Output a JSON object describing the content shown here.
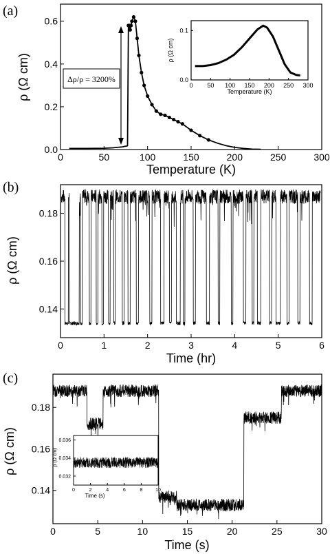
{
  "chart_data": [
    {
      "panel_label": "(a)",
      "type": "line",
      "xlabel": "Temperature (K)",
      "ylabel": "ρ (Ω cm)",
      "xlim": [
        0,
        300
      ],
      "ylim": [
        0,
        0.68
      ],
      "xticks": [
        "0",
        "50",
        "100",
        "150",
        "200",
        "250",
        "300"
      ],
      "yticks": [
        "0.0",
        "0.2",
        "0.4",
        "0.6"
      ],
      "annotation": "Δρ/ρ = 3200%",
      "series": [
        {
          "x": [
            10,
            30,
            50,
            60,
            65,
            70,
            72,
            74,
            76,
            77,
            78,
            79,
            80,
            81,
            82,
            84,
            86,
            88,
            90,
            93,
            96,
            100,
            105,
            110,
            115,
            120,
            125,
            130,
            135,
            140,
            150,
            160,
            170,
            180,
            190,
            200,
            210,
            220,
            230
          ],
          "y": [
            0.005,
            0.005,
            0.006,
            0.008,
            0.01,
            0.012,
            0.013,
            0.015,
            0.016,
            0.018,
            0.58,
            0.58,
            0.56,
            0.58,
            0.6,
            0.62,
            0.6,
            0.52,
            0.44,
            0.36,
            0.3,
            0.25,
            0.21,
            0.18,
            0.165,
            0.16,
            0.15,
            0.14,
            0.13,
            0.12,
            0.09,
            0.065,
            0.045,
            0.03,
            0.018,
            0.01,
            0.005,
            0.002,
            0.001
          ]
        }
      ],
      "inset": {
        "type": "line",
        "xlabel": "Temperature (K)",
        "ylabel": "ρ (Ω cm)",
        "xlim": [
          0,
          300
        ],
        "ylim": [
          0,
          0.12
        ],
        "xticks": [
          "0",
          "50",
          "100",
          "150",
          "200",
          "250",
          "300"
        ],
        "yticks": [
          "0.0",
          "0.1"
        ],
        "series": [
          {
            "x": [
              10,
              30,
              50,
              70,
              90,
              110,
              130,
              150,
              170,
              185,
              195,
              210,
              225,
              240,
              255,
              270,
              280
            ],
            "y": [
              0.028,
              0.028,
              0.03,
              0.034,
              0.041,
              0.051,
              0.066,
              0.084,
              0.102,
              0.11,
              0.106,
              0.088,
              0.06,
              0.032,
              0.015,
              0.01,
              0.009
            ]
          }
        ]
      }
    },
    {
      "panel_label": "(b)",
      "type": "line",
      "xlabel": "Time (hr)",
      "ylabel": "ρ (Ω cm)",
      "xlim": [
        0,
        6
      ],
      "ylim": [
        0.128,
        0.192
      ],
      "xticks": [
        "0",
        "1",
        "2",
        "3",
        "4",
        "5",
        "6"
      ],
      "yticks": [
        "0.14",
        "0.16",
        "0.18"
      ],
      "levels": {
        "high": 0.187,
        "low": 0.134
      },
      "low_intervals_hr": [
        [
          0.1,
          0.18
        ],
        [
          0.2,
          0.43
        ],
        [
          0.46,
          0.5
        ],
        [
          0.66,
          0.7
        ],
        [
          0.82,
          0.86
        ],
        [
          0.95,
          0.99
        ],
        [
          1.1,
          1.14
        ],
        [
          1.22,
          1.26
        ],
        [
          1.42,
          1.46
        ],
        [
          1.55,
          1.6
        ],
        [
          1.74,
          1.79
        ],
        [
          2.05,
          2.1
        ],
        [
          2.3,
          2.38
        ],
        [
          2.5,
          2.55
        ],
        [
          2.66,
          2.75
        ],
        [
          2.82,
          2.86
        ],
        [
          3.05,
          3.1
        ],
        [
          3.35,
          3.42
        ],
        [
          3.62,
          3.66
        ],
        [
          3.92,
          3.96
        ],
        [
          4.2,
          4.26
        ],
        [
          4.4,
          4.44
        ],
        [
          4.52,
          4.6
        ],
        [
          4.8,
          4.85
        ],
        [
          4.95,
          5.05
        ],
        [
          5.2,
          5.25
        ],
        [
          5.45,
          5.5
        ],
        [
          5.72,
          5.78
        ]
      ]
    },
    {
      "panel_label": "(c)",
      "type": "line",
      "xlabel": "Time (s)",
      "ylabel": "ρ (Ω cm)",
      "xlim": [
        0,
        30
      ],
      "ylim": [
        0.124,
        0.196
      ],
      "xticks": [
        "0",
        "5",
        "10",
        "15",
        "20",
        "25",
        "30"
      ],
      "yticks": [
        "0.14",
        "0.16",
        "0.18"
      ],
      "segments_s": [
        {
          "t0": 0,
          "t1": 3.8,
          "level": 0.188
        },
        {
          "t0": 3.8,
          "t1": 5.6,
          "level": 0.172
        },
        {
          "t0": 5.6,
          "t1": 11.8,
          "level": 0.188
        },
        {
          "t0": 11.8,
          "t1": 13.8,
          "level": 0.137
        },
        {
          "t0": 13.8,
          "t1": 21.3,
          "level": 0.133
        },
        {
          "t0": 21.3,
          "t1": 25.5,
          "level": 0.175
        },
        {
          "t0": 25.5,
          "t1": 30,
          "level": 0.188
        }
      ],
      "inset": {
        "type": "line",
        "xlabel": "Time (s)",
        "ylabel": "ρ (Ω cm)",
        "xlim": [
          0,
          10
        ],
        "ylim": [
          0.031,
          0.0365
        ],
        "xticks": [
          "0",
          "2",
          "4",
          "6",
          "8",
          "10"
        ],
        "yticks": [
          "0.032",
          "0.034",
          "0.036"
        ],
        "level": 0.0335
      }
    }
  ]
}
